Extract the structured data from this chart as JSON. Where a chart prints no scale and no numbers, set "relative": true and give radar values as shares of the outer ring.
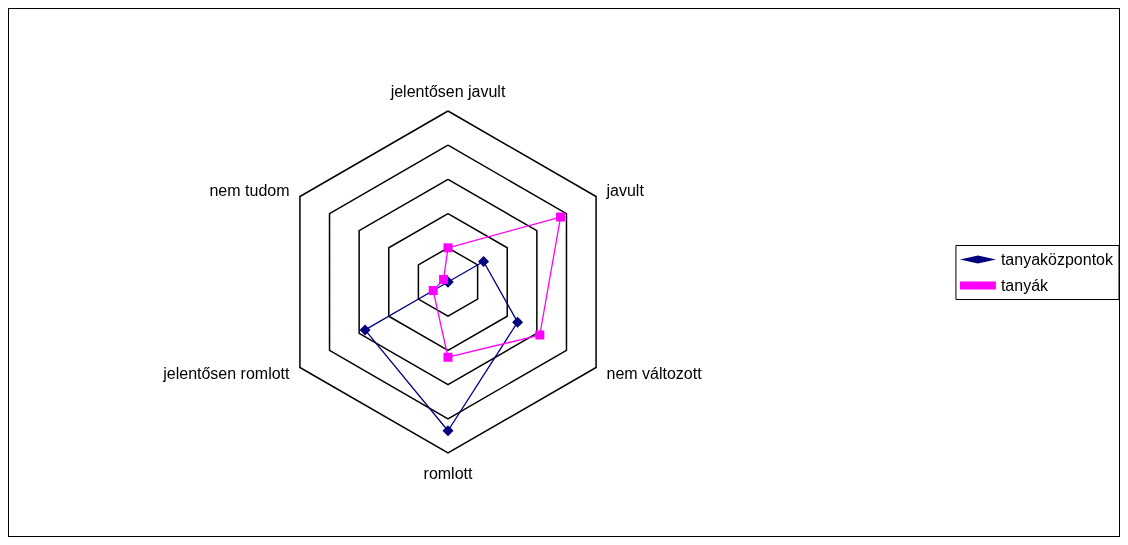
{
  "chart_data": {
    "type": "radar",
    "relative": true,
    "categories": [
      "jelentősen javult",
      "javult",
      "nem változott",
      "romlott",
      "jelentősen romlott",
      "nem tudom"
    ],
    "series": [
      {
        "name": "tanyaközpontok",
        "color": "#000080",
        "marker": "diamond",
        "values": [
          0,
          0.24,
          0.47,
          0.87,
          0.56,
          0
        ]
      },
      {
        "name": "tanyák",
        "color": "#ff00ff",
        "marker": "square",
        "values": [
          0.2,
          0.76,
          0.62,
          0.44,
          0.1,
          0.03
        ]
      }
    ],
    "legend": "right",
    "grid": true
  }
}
